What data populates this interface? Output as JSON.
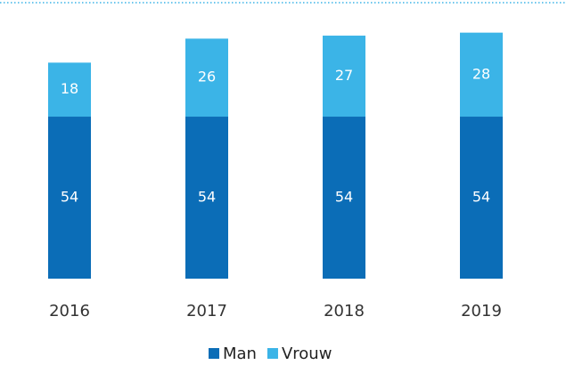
{
  "chart_data": {
    "type": "stacked_bar",
    "categories": [
      "2016",
      "2017",
      "2018",
      "2019"
    ],
    "series": [
      {
        "name": "Man",
        "color": "#0b6db7",
        "values": [
          54,
          54,
          54,
          54
        ]
      },
      {
        "name": "Vrouw",
        "color": "#3bb4e7",
        "values": [
          18,
          26,
          27,
          28
        ]
      }
    ]
  }
}
